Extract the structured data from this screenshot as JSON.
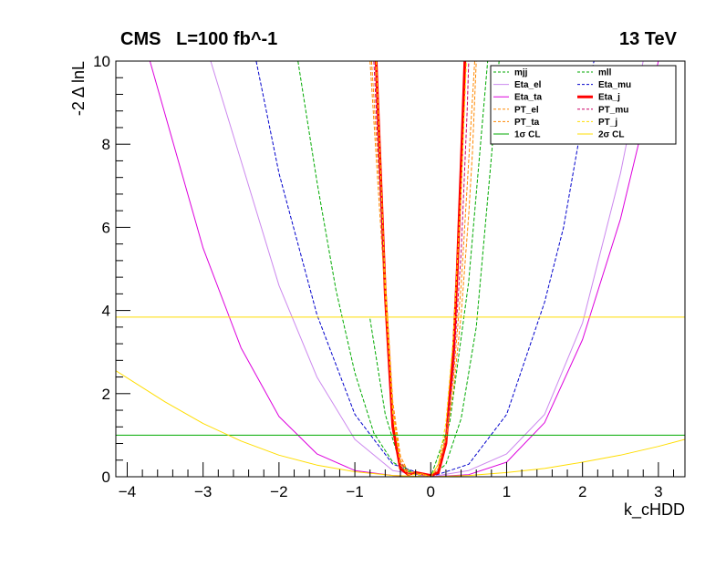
{
  "header": {
    "left_label": "CMS   L=100 fb^-1",
    "right_label": "13 TeV"
  },
  "chart_data": {
    "type": "line",
    "title": "",
    "xlabel": "k_cHDD",
    "ylabel": "-2 Δ lnL",
    "xlim": [
      -4.15,
      3.35
    ],
    "ylim": [
      0,
      10
    ],
    "x_ticks": [
      -4,
      -3,
      -2,
      -1,
      0,
      1,
      2,
      3
    ],
    "x_tick_labels": [
      "−4",
      "−3",
      "−2",
      "−1",
      "0",
      "1",
      "2",
      "3"
    ],
    "y_ticks": [
      0,
      2,
      4,
      6,
      8,
      10
    ],
    "y_tick_labels": [
      "0",
      "2",
      "4",
      "6",
      "8",
      "10"
    ],
    "grid": false,
    "legend_placement": "top-right",
    "series": [
      {
        "name": "mjj",
        "color": "#00aa00",
        "dashed": true,
        "width": 1,
        "x": [
          -1.75,
          -1.5,
          -1.25,
          -1.0,
          -0.75,
          -0.5,
          -0.25,
          0.0,
          0.25,
          0.5,
          0.75
        ],
        "y": [
          10.0,
          7.1,
          4.5,
          2.5,
          1.05,
          0.35,
          0.08,
          0.0,
          1.3,
          4.7,
          10.0
        ]
      },
      {
        "name": "mll",
        "color": "#00aa00",
        "dashed": true,
        "width": 1,
        "x": [
          -0.8,
          -0.6,
          -0.4,
          -0.2,
          0.0,
          0.2,
          0.4,
          0.6,
          0.8,
          0.9
        ],
        "y": [
          3.8,
          1.5,
          0.3,
          0.05,
          0.0,
          0.3,
          1.4,
          3.6,
          7.7,
          10.0
        ]
      },
      {
        "name": "Eta_el",
        "color": "#cc88ee",
        "dashed": false,
        "width": 1,
        "x": [
          -2.9,
          -2.5,
          -2.0,
          -1.5,
          -1.0,
          -0.5,
          0.0,
          0.5,
          1.0,
          1.5,
          2.0,
          2.5,
          2.8
        ],
        "y": [
          10.0,
          7.6,
          4.6,
          2.4,
          0.9,
          0.15,
          0.0,
          0.15,
          0.55,
          1.5,
          3.7,
          7.3,
          10.0
        ]
      },
      {
        "name": "Eta_mu",
        "color": "#0000cc",
        "dashed": true,
        "width": 1,
        "x": [
          -2.3,
          -2.0,
          -1.5,
          -1.0,
          -0.5,
          0.0,
          0.5,
          1.0,
          1.5,
          1.75,
          2.0,
          2.15
        ],
        "y": [
          10.0,
          7.3,
          3.9,
          1.5,
          0.3,
          0.0,
          0.3,
          1.5,
          4.2,
          6.0,
          8.6,
          10.0
        ]
      },
      {
        "name": "Eta_ta",
        "color": "#dd00dd",
        "dashed": false,
        "width": 1,
        "x": [
          -3.7,
          -3.0,
          -2.5,
          -2.0,
          -1.5,
          -1.0,
          -0.5,
          0.0,
          0.5,
          1.0,
          1.5,
          2.0,
          2.5,
          3.0
        ],
        "y": [
          10.0,
          5.5,
          3.1,
          1.45,
          0.55,
          0.15,
          0.03,
          0.0,
          0.05,
          0.35,
          1.3,
          3.3,
          6.2,
          10.0
        ]
      },
      {
        "name": "Eta_j",
        "color": "#ff0000",
        "dashed": false,
        "width": 3,
        "x": [
          -0.72,
          -0.6,
          -0.5,
          -0.4,
          -0.3,
          -0.2,
          0.0,
          0.1,
          0.2,
          0.3,
          0.35,
          0.4,
          0.45
        ],
        "y": [
          10.0,
          4.4,
          1.2,
          0.2,
          0.06,
          0.1,
          0.03,
          0.1,
          0.8,
          3.0,
          5.0,
          7.5,
          10.0
        ]
      },
      {
        "name": "PT_el",
        "color": "#ff8800",
        "dashed": true,
        "width": 1,
        "x": [
          -0.78,
          -0.6,
          -0.5,
          -0.4,
          -0.3,
          -0.1,
          0.0,
          0.1,
          0.2,
          0.3,
          0.4,
          0.5,
          0.58
        ],
        "y": [
          10.0,
          4.8,
          1.8,
          0.5,
          0.12,
          0.06,
          0.0,
          0.3,
          1.0,
          2.4,
          4.6,
          7.6,
          10.0
        ]
      },
      {
        "name": "PT_mu",
        "color": "#cc0066",
        "dashed": true,
        "width": 1,
        "x": [
          -0.75,
          -0.6,
          -0.5,
          -0.4,
          -0.3,
          -0.1,
          0.0,
          0.1,
          0.2,
          0.3,
          0.4,
          0.48,
          0.5
        ],
        "y": [
          10.0,
          4.4,
          1.6,
          0.35,
          0.08,
          0.05,
          0.0,
          0.2,
          0.9,
          2.6,
          5.4,
          8.8,
          10.0
        ]
      },
      {
        "name": "PT_ta",
        "color": "#ff8800",
        "dashed": true,
        "width": 1,
        "x": [
          -0.8,
          -0.6,
          -0.5,
          -0.4,
          -0.3,
          -0.1,
          0.0,
          0.1,
          0.2,
          0.3,
          0.4,
          0.5,
          0.55,
          0.6
        ],
        "y": [
          10.0,
          4.3,
          1.6,
          0.4,
          0.1,
          0.07,
          0.0,
          0.2,
          0.9,
          2.1,
          3.9,
          6.3,
          7.8,
          10.0
        ]
      },
      {
        "name": "PT_j",
        "color": "#ffdd00",
        "dashed": true,
        "width": 1,
        "x": [
          -0.72,
          -0.6,
          -0.5,
          -0.4,
          -0.3,
          -0.1,
          0.0,
          0.1,
          0.2,
          0.3,
          0.4,
          0.47
        ],
        "y": [
          10.0,
          4.6,
          1.5,
          0.3,
          0.06,
          0.05,
          0.0,
          0.3,
          1.3,
          3.4,
          6.9,
          10.0
        ]
      },
      {
        "name": "1σ CL",
        "color": "#00aa00",
        "dashed": false,
        "width": 1,
        "x": [
          -4.15,
          3.35
        ],
        "y": [
          1.0,
          1.0
        ]
      },
      {
        "name": "2σ CL",
        "color": "#ffdd00",
        "dashed": false,
        "width": 1,
        "x": [
          -4.15,
          3.35
        ],
        "y": [
          3.84,
          3.84
        ]
      },
      {
        "legend": false,
        "color": "#ffdd00",
        "dashed": false,
        "width": 1,
        "x": [
          -4.15,
          -3.5,
          -3.0,
          -2.5,
          -2.0,
          -1.5,
          -1.0,
          -0.5,
          0.0,
          0.5,
          1.0,
          1.5,
          2.0,
          2.5,
          3.0,
          3.35
        ],
        "y": [
          2.55,
          1.8,
          1.28,
          0.86,
          0.52,
          0.28,
          0.12,
          0.03,
          0.0,
          0.03,
          0.1,
          0.2,
          0.35,
          0.52,
          0.73,
          0.9
        ]
      }
    ]
  }
}
